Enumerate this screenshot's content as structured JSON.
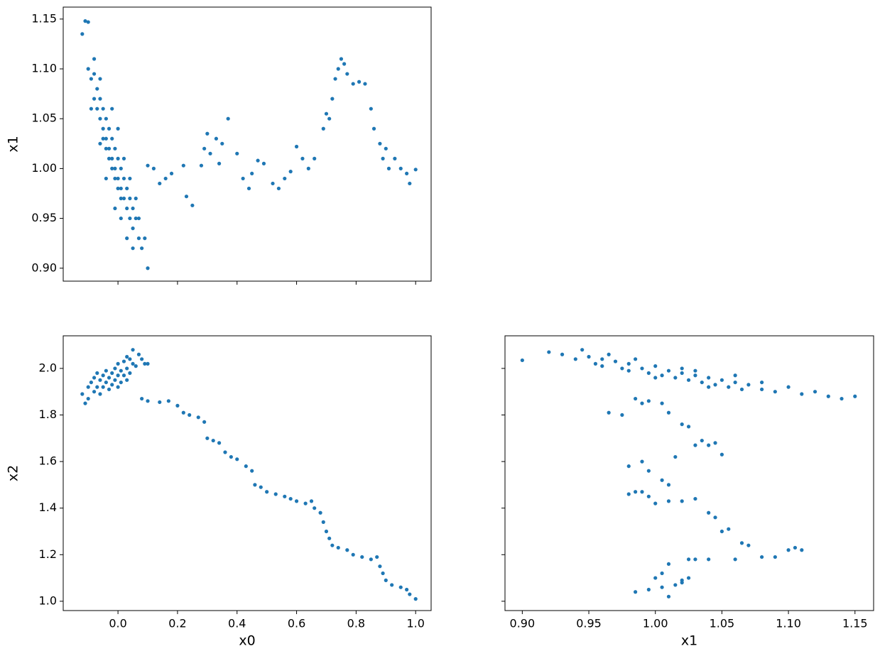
{
  "chart_data": [
    {
      "type": "scatter",
      "ylabel": "x1",
      "color": "#1f77b4",
      "xlim": [
        -0.184,
        1.052
      ],
      "ylim": [
        0.887,
        1.162
      ],
      "xticks": [
        0,
        0.2,
        0.4,
        0.6,
        0.8,
        1
      ],
      "yticks": [
        {
          "value": 0.9,
          "label": "0.90"
        },
        0.95,
        {
          "value": 1.0,
          "label": "1.00"
        },
        1.05,
        {
          "value": 1.1,
          "label": "1.10"
        },
        1.15
      ],
      "xticklabels": false,
      "yticklabels": true,
      "x": [
        -0.12,
        -0.11,
        -0.1,
        -0.1,
        -0.09,
        -0.08,
        -0.08,
        -0.07,
        -0.07,
        -0.06,
        -0.06,
        -0.05,
        -0.05,
        -0.05,
        -0.04,
        -0.04,
        -0.04,
        -0.03,
        -0.03,
        -0.03,
        -0.02,
        -0.02,
        -0.02,
        -0.01,
        -0.01,
        -0.01,
        0,
        0,
        0,
        0.01,
        0.01,
        0.01,
        0.02,
        0.02,
        0.03,
        0.03,
        0.04,
        0.04,
        0.05,
        0.05,
        0.06,
        0.07,
        0.08,
        0.09,
        0.1,
        -0.08,
        -0.06,
        -0.09,
        -0.02,
        0,
        -0.06,
        0.02,
        0.04,
        0.06,
        -0.04,
        -0.01,
        0.01,
        0.03,
        0.05,
        0.07,
        0.1,
        0.12,
        0.14,
        0.16,
        0.18,
        0.22,
        0.23,
        0.25,
        0.28,
        0.29,
        0.3,
        0.31,
        0.33,
        0.34,
        0.35,
        0.37,
        0.4,
        0.42,
        0.44,
        0.45,
        0.47,
        0.49,
        0.52,
        0.54,
        0.56,
        0.58,
        0.6,
        0.62,
        0.64,
        0.66,
        0.69,
        0.7,
        0.71,
        0.72,
        0.73,
        0.74,
        0.75,
        0.76,
        0.77,
        0.79,
        0.81,
        0.83,
        0.85,
        0.86,
        0.88,
        0.89,
        0.9,
        0.91,
        0.93,
        0.95,
        0.97,
        0.98,
        1.0
      ],
      "values": [
        1.135,
        1.148,
        1.147,
        1.1,
        1.09,
        1.095,
        1.07,
        1.08,
        1.06,
        1.07,
        1.05,
        1.06,
        1.04,
        1.03,
        1.05,
        1.03,
        1.02,
        1.04,
        1.02,
        1.01,
        1.03,
        1.01,
        1.0,
        1.02,
        1.0,
        0.99,
        1.01,
        0.99,
        0.98,
        1.0,
        0.98,
        0.97,
        0.99,
        0.97,
        0.98,
        0.96,
        0.97,
        0.95,
        0.96,
        0.94,
        0.95,
        0.93,
        0.92,
        0.93,
        0.9,
        1.11,
        1.09,
        1.06,
        1.06,
        1.04,
        1.025,
        1.01,
        0.99,
        0.97,
        0.99,
        0.96,
        0.95,
        0.93,
        0.92,
        0.95,
        1.003,
        1.0,
        0.985,
        0.99,
        0.995,
        1.003,
        0.972,
        0.963,
        1.003,
        1.02,
        1.035,
        1.015,
        1.03,
        1.005,
        1.025,
        1.05,
        1.015,
        0.99,
        0.98,
        0.995,
        1.008,
        1.005,
        0.985,
        0.98,
        0.99,
        0.997,
        1.022,
        1.01,
        1.0,
        1.01,
        1.04,
        1.055,
        1.05,
        1.07,
        1.09,
        1.1,
        1.11,
        1.105,
        1.095,
        1.085,
        1.087,
        1.085,
        1.06,
        1.04,
        1.025,
        1.01,
        1.02,
        1.0,
        1.01,
        1.0,
        0.995,
        0.985,
        0.999
      ]
    },
    {
      "type": "scatter",
      "xlabel": "x0",
      "ylabel": "x2",
      "color": "#1f77b4",
      "xlim": [
        -0.184,
        1.052
      ],
      "ylim": [
        0.96,
        2.14
      ],
      "xticks": [
        {
          "value": 0,
          "label": "0.0"
        },
        0.2,
        0.4,
        0.6,
        0.8,
        {
          "value": 1,
          "label": "1.0"
        }
      ],
      "yticks": [
        {
          "value": 1,
          "label": "1.0"
        },
        1.2,
        1.4,
        1.6,
        1.8,
        {
          "value": 2,
          "label": "2.0"
        }
      ],
      "xticklabels": true,
      "yticklabels": true,
      "x": [
        -0.12,
        -0.11,
        -0.1,
        -0.1,
        -0.09,
        -0.08,
        -0.08,
        -0.07,
        -0.06,
        -0.06,
        -0.05,
        -0.05,
        -0.04,
        -0.04,
        -0.03,
        -0.03,
        -0.02,
        -0.02,
        -0.01,
        -0.01,
        0,
        0,
        0.01,
        0.01,
        0.02,
        0.02,
        0.03,
        0.03,
        0.04,
        0.04,
        0.05,
        0.05,
        0.06,
        0.07,
        0.08,
        0.09,
        0.1,
        -0.07,
        0.0,
        0.03,
        0.08,
        0.1,
        0.14,
        0.17,
        0.2,
        0.22,
        0.24,
        0.27,
        0.29,
        0.3,
        0.32,
        0.34,
        0.36,
        0.38,
        0.4,
        0.43,
        0.45,
        0.46,
        0.48,
        0.5,
        0.53,
        0.56,
        0.58,
        0.6,
        0.63,
        0.65,
        0.66,
        0.68,
        0.69,
        0.7,
        0.71,
        0.72,
        0.74,
        0.77,
        0.79,
        0.82,
        0.85,
        0.87,
        0.88,
        0.89,
        0.9,
        0.92,
        0.95,
        0.97,
        0.98,
        1.0
      ],
      "values": [
        1.89,
        1.85,
        1.92,
        1.87,
        1.94,
        1.9,
        1.96,
        1.92,
        1.95,
        1.89,
        1.97,
        1.92,
        1.94,
        1.99,
        1.96,
        1.91,
        1.98,
        1.93,
        2.0,
        1.95,
        1.97,
        2.02,
        1.99,
        1.94,
        2.03,
        1.97,
        2.0,
        2.05,
        1.98,
        2.04,
        2.02,
        2.08,
        2.01,
        2.06,
        2.04,
        2.02,
        2.02,
        1.98,
        1.92,
        1.95,
        1.87,
        1.86,
        1.855,
        1.86,
        1.84,
        1.81,
        1.8,
        1.79,
        1.77,
        1.7,
        1.69,
        1.68,
        1.64,
        1.62,
        1.61,
        1.58,
        1.56,
        1.5,
        1.49,
        1.47,
        1.46,
        1.45,
        1.44,
        1.43,
        1.42,
        1.43,
        1.4,
        1.38,
        1.34,
        1.3,
        1.27,
        1.24,
        1.23,
        1.22,
        1.2,
        1.19,
        1.18,
        1.19,
        1.15,
        1.12,
        1.09,
        1.07,
        1.06,
        1.05,
        1.03,
        1.01
      ]
    },
    {
      "type": "scatter",
      "xlabel": "x1",
      "color": "#1f77b4",
      "xlim": [
        0.887,
        1.164
      ],
      "ylim": [
        0.96,
        2.14
      ],
      "xticks": [
        {
          "value": 0.9,
          "label": "0.90"
        },
        0.95,
        {
          "value": 1.0,
          "label": "1.00"
        },
        1.05,
        {
          "value": 1.1,
          "label": "1.10"
        },
        1.15
      ],
      "yticks": [
        1,
        1.2,
        1.4,
        1.6,
        1.8,
        2
      ],
      "xticklabels": true,
      "yticklabels": false,
      "x": [
        0.92,
        0.93,
        0.94,
        0.945,
        0.95,
        0.955,
        0.96,
        0.965,
        0.97,
        0.975,
        0.98,
        0.985,
        0.99,
        0.995,
        1.0,
        1.005,
        1.01,
        1.015,
        1.02,
        1.025,
        1.03,
        1.035,
        1.04,
        1.045,
        1.05,
        1.055,
        1.06,
        1.065,
        1.07,
        1.08,
        1.09,
        1.1,
        1.11,
        1.12,
        1.13,
        1.14,
        1.15,
        1.0,
        1.02,
        1.04,
        1.06,
        0.98,
        1.08,
        0.96,
        1.03,
        0.9,
        0.965,
        0.975,
        0.985,
        0.99,
        0.995,
        1.005,
        1.01,
        1.02,
        1.025,
        1.03,
        1.035,
        1.04,
        1.045,
        1.015,
        1.05,
        0.98,
        0.99,
        0.995,
        1.005,
        1.01,
        0.98,
        0.985,
        0.99,
        0.995,
        1.0,
        1.01,
        1.02,
        1.03,
        1.04,
        1.045,
        1.05,
        1.055,
        1.06,
        1.065,
        1.07,
        1.08,
        1.09,
        1.1,
        1.105,
        1.11,
        1.025,
        1.03,
        1.04,
        1.01,
        1.005,
        1.0,
        1.015,
        1.02,
        0.985,
        0.995,
        1.005,
        1.01,
        1.02,
        1.025
      ],
      "values": [
        2.07,
        2.06,
        2.04,
        2.08,
        2.05,
        2.02,
        2.04,
        2.06,
        2.03,
        2.0,
        2.02,
        2.04,
        2.0,
        1.98,
        2.01,
        1.97,
        1.99,
        1.96,
        1.98,
        1.95,
        1.97,
        1.94,
        1.96,
        1.93,
        1.95,
        1.92,
        1.94,
        1.91,
        1.93,
        1.91,
        1.9,
        1.92,
        1.89,
        1.9,
        1.88,
        1.87,
        1.88,
        1.96,
        2.0,
        1.92,
        1.97,
        1.99,
        1.94,
        2.01,
        1.99,
        2.035,
        1.81,
        1.8,
        1.87,
        1.85,
        1.86,
        1.85,
        1.81,
        1.76,
        1.75,
        1.67,
        1.69,
        1.67,
        1.68,
        1.62,
        1.63,
        1.58,
        1.6,
        1.56,
        1.52,
        1.5,
        1.46,
        1.47,
        1.47,
        1.45,
        1.42,
        1.43,
        1.43,
        1.44,
        1.38,
        1.36,
        1.3,
        1.31,
        1.18,
        1.25,
        1.24,
        1.19,
        1.19,
        1.22,
        1.23,
        1.22,
        1.18,
        1.18,
        1.18,
        1.16,
        1.12,
        1.1,
        1.07,
        1.09,
        1.04,
        1.05,
        1.06,
        1.02,
        1.08,
        1.1
      ]
    }
  ]
}
